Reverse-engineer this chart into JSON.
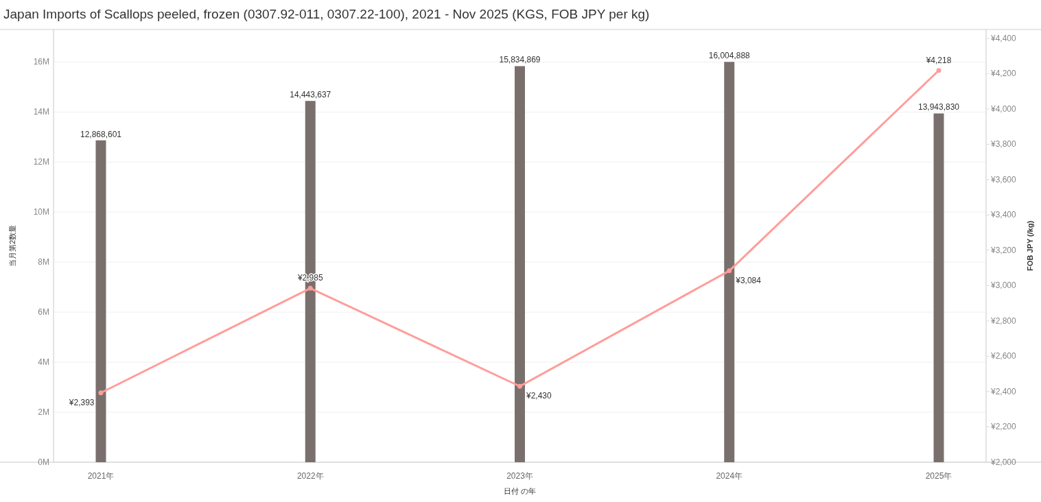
{
  "chart_data": {
    "type": "bar",
    "title": "Japan Imports of Scallops peeled, frozen (0307.92-011, 0307.22-100), 2021 - Nov 2025 (KGS, FOB JPY per kg)",
    "xlabel": "日付 の年",
    "ylabel": "当月第2数量",
    "y2label": "FOB JPY (/kg)",
    "categories": [
      "2021年",
      "2022年",
      "2023年",
      "2024年",
      "2025年"
    ],
    "series": [
      {
        "color": "#79706e",
        "values": [
          12868601,
          14443637,
          15834869,
          16004888,
          13943830
        ],
        "value_labels": [
          "12,868,601",
          "14,443,637",
          "15,834,869",
          "16,004,888",
          "13,943,830"
        ]
      },
      {
        "type": "line",
        "axis": "y2",
        "color": "#ff9d9a",
        "values": [
          2393,
          2985,
          2430,
          3084,
          4218
        ],
        "value_labels": [
          "¥2,393",
          "¥2,985",
          "¥2,430",
          "¥3,084",
          "¥4,218"
        ]
      }
    ],
    "ylim": [
      0,
      17300000
    ],
    "yticks": [
      {
        "value": 0,
        "label": "0M"
      },
      {
        "value": 2000000,
        "label": "2M"
      },
      {
        "value": 4000000,
        "label": "4M"
      },
      {
        "value": 6000000,
        "label": "6M"
      },
      {
        "value": 8000000,
        "label": "8M"
      },
      {
        "value": 10000000,
        "label": "10M"
      },
      {
        "value": 12000000,
        "label": "12M"
      },
      {
        "value": 14000000,
        "label": "14M"
      },
      {
        "value": 16000000,
        "label": "16M"
      }
    ],
    "y2lim": [
      2000,
      4450
    ],
    "y2ticks": [
      {
        "value": 2000,
        "label": "¥2,000"
      },
      {
        "value": 2200,
        "label": "¥2,200"
      },
      {
        "value": 2400,
        "label": "¥2,400"
      },
      {
        "value": 2600,
        "label": "¥2,600"
      },
      {
        "value": 2800,
        "label": "¥2,800"
      },
      {
        "value": 3000,
        "label": "¥3,000"
      },
      {
        "value": 3200,
        "label": "¥3,200"
      },
      {
        "value": 3400,
        "label": "¥3,400"
      },
      {
        "value": 3600,
        "label": "¥3,600"
      },
      {
        "value": 3800,
        "label": "¥3,800"
      },
      {
        "value": 4000,
        "label": "¥4,000"
      },
      {
        "value": 4200,
        "label": "¥4,200"
      },
      {
        "value": 4400,
        "label": "¥4,400"
      }
    ],
    "grid": "y",
    "marker": "circle"
  }
}
